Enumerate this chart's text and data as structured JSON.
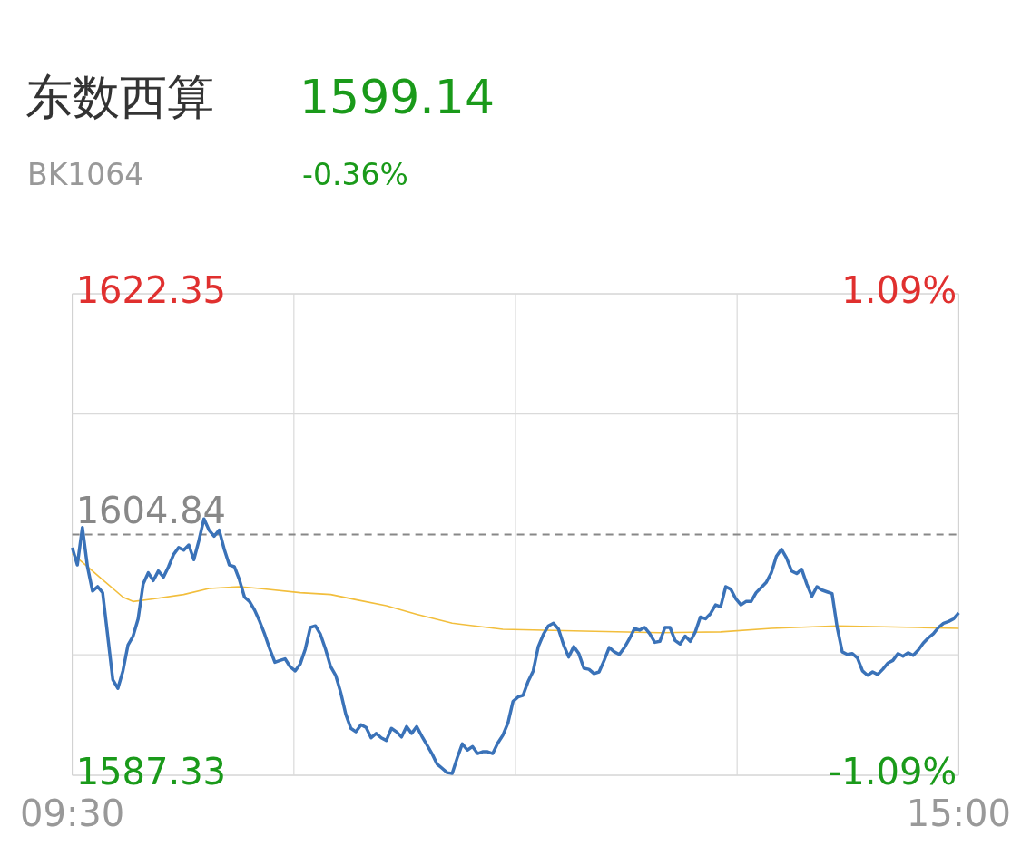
{
  "chart_data": {
    "type": "line",
    "title": "东数西算",
    "subtitle": "BK1064",
    "annotations": [
      "1599.14",
      "-0.36%"
    ],
    "categories": [
      "09:30",
      null,
      null,
      null,
      null,
      null,
      null,
      null,
      null,
      null,
      null,
      null,
      null,
      null,
      null,
      null,
      null,
      null,
      null,
      null,
      null,
      null,
      null,
      null,
      null,
      null,
      null,
      null,
      null,
      null,
      null,
      null,
      null,
      null,
      null,
      null,
      null,
      null,
      null,
      null,
      null,
      null,
      null,
      null,
      null,
      null,
      null,
      null,
      null,
      null,
      null,
      null,
      null,
      null,
      null,
      null,
      null,
      null,
      null,
      null,
      null,
      null,
      null,
      null,
      null,
      null,
      null,
      null,
      null,
      null,
      null,
      null,
      null,
      null,
      null,
      null,
      null,
      null,
      null,
      null,
      null,
      null,
      null,
      null,
      null,
      null,
      null,
      null,
      null,
      null,
      null,
      null,
      null,
      null,
      null,
      null,
      null,
      null,
      null,
      null,
      null,
      null,
      null,
      null,
      null,
      null,
      null,
      null,
      null,
      null,
      null,
      null,
      null,
      null,
      null,
      null,
      null,
      null,
      null,
      null,
      null,
      null,
      null,
      null,
      null,
      null,
      null,
      null,
      null,
      null,
      null,
      null,
      null,
      null,
      null,
      null,
      null,
      null,
      null,
      null,
      null,
      null,
      null,
      null,
      null,
      null,
      null,
      null,
      null,
      null,
      null,
      null,
      null,
      null,
      null,
      null,
      null,
      null,
      null,
      null,
      null,
      null,
      null,
      null,
      null,
      null,
      null,
      null,
      null,
      null,
      null,
      null,
      null,
      null,
      null,
      "15:00"
    ],
    "ylim": [
      1587.33,
      1622.35
    ],
    "yticks": [
      1587.33,
      {
        "value": 1596.09,
        "label": null
      },
      {
        "value": 1613.6,
        "label": null
      },
      1622.35
    ],
    "y2lim": [
      -1.09,
      1.09
    ],
    "y2ticks": [
      {
        "value": -1.09,
        "label": "-1.09%"
      },
      {
        "value": 1.09,
        "label": "1.09%"
      }
    ],
    "ref_lines": [
      {
        "axis": "y",
        "value": 1604.84,
        "label": "1604.84",
        "color": "#888888",
        "line_style": "dashed"
      }
    ],
    "grid": true,
    "legend": false,
    "marker": "none",
    "line_style": "solid",
    "series": [
      {
        "color": "#3a72b8",
        "values": [
          1603.89,
          1602.63,
          1605.35,
          1602.5,
          1600.73,
          1601.05,
          1600.61,
          1597.45,
          1594.28,
          1593.65,
          1594.92,
          1596.81,
          1597.45,
          1598.71,
          1601.24,
          1602.06,
          1601.49,
          1602.19,
          1601.74,
          1602.5,
          1603.39,
          1603.89,
          1603.7,
          1604.08,
          1603.01,
          1604.4,
          1605.98,
          1605.16,
          1604.71,
          1605.16,
          1603.77,
          1602.63,
          1602.5,
          1601.55,
          1600.29,
          1599.97,
          1599.34,
          1598.52,
          1597.57,
          1596.5,
          1595.55,
          1595.68,
          1595.8,
          1595.23,
          1594.92,
          1595.42,
          1596.5,
          1598.08,
          1598.2,
          1597.57,
          1596.5,
          1595.23,
          1594.6,
          1593.34,
          1591.76,
          1590.74,
          1590.49,
          1591.0,
          1590.81,
          1590.05,
          1590.37,
          1590.05,
          1589.86,
          1590.74,
          1590.49,
          1590.11,
          1590.87,
          1590.37,
          1590.87,
          1590.18,
          1589.54,
          1588.91,
          1588.15,
          1587.84,
          1587.52,
          1587.46,
          1588.6,
          1589.61,
          1589.16,
          1589.42,
          1588.91,
          1589.04,
          1589.04,
          1588.91,
          1589.67,
          1590.24,
          1591.12,
          1592.7,
          1593.02,
          1593.15,
          1594.16,
          1594.92,
          1596.69,
          1597.57,
          1598.2,
          1598.39,
          1597.95,
          1596.81,
          1595.93,
          1596.69,
          1596.18,
          1595.11,
          1595.04,
          1594.73,
          1594.85,
          1595.68,
          1596.62,
          1596.31,
          1596.12,
          1596.62,
          1597.26,
          1598.01,
          1597.89,
          1598.08,
          1597.63,
          1597.0,
          1597.07,
          1598.08,
          1598.08,
          1597.13,
          1596.88,
          1597.45,
          1597.07,
          1597.76,
          1598.84,
          1598.71,
          1599.09,
          1599.72,
          1599.59,
          1601.05,
          1600.86,
          1600.16,
          1599.72,
          1599.97,
          1599.97,
          1600.61,
          1600.98,
          1601.36,
          1602.06,
          1603.26,
          1603.77,
          1603.13,
          1602.19,
          1602.0,
          1602.31,
          1601.24,
          1600.35,
          1601.05,
          1600.8,
          1600.67,
          1600.54,
          1598.08,
          1596.31,
          1596.12,
          1596.18,
          1595.86,
          1594.92,
          1594.6,
          1594.85,
          1594.66,
          1595.04,
          1595.49,
          1595.68,
          1596.18,
          1595.99,
          1596.24,
          1596.05,
          1596.43,
          1596.94,
          1597.32,
          1597.63,
          1598.08,
          1598.39,
          1598.52,
          1598.71,
          1599.14
        ]
      },
      {
        "color": "#f2be3c",
        "values": [
          1603.45,
          null,
          null,
          1602.5,
          null,
          null,
          1601.55,
          null,
          null,
          null,
          1600.29,
          null,
          1599.97,
          null,
          null,
          null,
          1600.16,
          null,
          null,
          null,
          null,
          null,
          1600.48,
          null,
          null,
          null,
          null,
          1600.92,
          null,
          null,
          null,
          null,
          null,
          1601.05,
          null,
          null,
          null,
          1600.92,
          null,
          null,
          null,
          null,
          null,
          null,
          null,
          1600.61,
          null,
          null,
          null,
          null,
          null,
          1600.48,
          null,
          null,
          null,
          null,
          1600.1,
          null,
          null,
          null,
          null,
          null,
          1599.66,
          null,
          null,
          null,
          null,
          null,
          1599.03,
          null,
          null,
          null,
          null,
          null,
          null,
          1598.39,
          null,
          null,
          null,
          null,
          null,
          null,
          null,
          null,
          null,
          1597.95,
          null,
          null,
          null,
          null,
          null,
          null,
          null,
          null,
          null,
          null,
          null,
          null,
          null,
          null,
          null,
          1597.82,
          null,
          null,
          null,
          null,
          null,
          null,
          null,
          null,
          null,
          null,
          null,
          null,
          null,
          null,
          1597.7,
          null,
          null,
          null,
          null,
          null,
          null,
          null,
          null,
          null,
          null,
          null,
          1597.76,
          null,
          null,
          null,
          null,
          null,
          null,
          null,
          null,
          null,
          1598.01,
          null,
          null,
          null,
          null,
          null,
          null,
          null,
          null,
          null,
          null,
          null,
          null,
          1598.2,
          null,
          null,
          null,
          null,
          null,
          null,
          null,
          null,
          null,
          null,
          null,
          null,
          null,
          null,
          null,
          1598.08,
          null,
          null,
          null,
          null,
          null,
          null,
          null,
          1598.01
        ]
      }
    ]
  }
}
